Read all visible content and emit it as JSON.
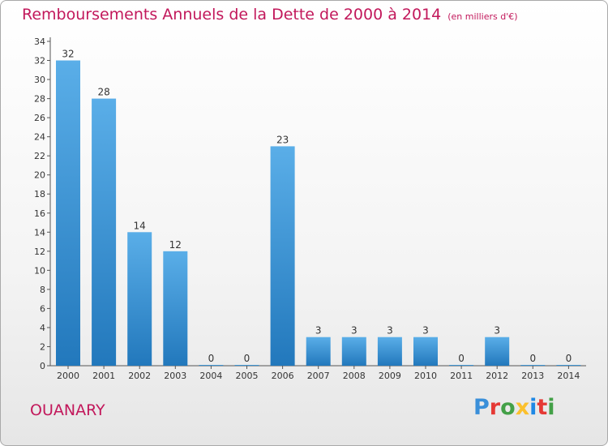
{
  "header": {
    "title": "Remboursements Annuels de la Dette de 2000 à 2014",
    "unit": "(en milliers d'€)"
  },
  "commune": "OUANARY",
  "logo": {
    "text": "Proxiti",
    "letters": [
      {
        "ch": "P",
        "color": "#3a8fd9"
      },
      {
        "ch": "r",
        "color": "#e53935"
      },
      {
        "ch": "o",
        "color": "#43a047"
      },
      {
        "ch": "x",
        "color": "#fbc02d"
      },
      {
        "ch": "i",
        "color": "#1e88e5"
      },
      {
        "ch": "t",
        "color": "#e53935"
      },
      {
        "ch": "i",
        "color": "#43a047"
      }
    ]
  },
  "colors": {
    "bar_top": "#5aaee8",
    "bar_bottom": "#2278bc",
    "accent": "#c2185b"
  },
  "chart_data": {
    "type": "bar",
    "title": "Remboursements Annuels de la Dette de 2000 à 2014",
    "xlabel": "",
    "ylabel": "",
    "categories": [
      "2000",
      "2001",
      "2002",
      "2003",
      "2004",
      "2005",
      "2006",
      "2007",
      "2008",
      "2009",
      "2010",
      "2011",
      "2012",
      "2013",
      "2014"
    ],
    "values": [
      32,
      28,
      14,
      12,
      0,
      0,
      23,
      3,
      3,
      3,
      3,
      0,
      3,
      0,
      0
    ],
    "labels": [
      "32",
      "28",
      "14",
      "12",
      "0",
      "0",
      "23",
      "3",
      "3",
      "3",
      "3",
      "0",
      "3",
      "0",
      "0"
    ],
    "yticks": [
      "0",
      "2",
      "4",
      "6",
      "8",
      "10",
      "12",
      "14",
      "16",
      "18",
      "20",
      "22",
      "24",
      "26",
      "28",
      "30",
      "32",
      "34"
    ],
    "ylim": [
      0,
      34
    ],
    "grid": false,
    "legend": "none"
  }
}
